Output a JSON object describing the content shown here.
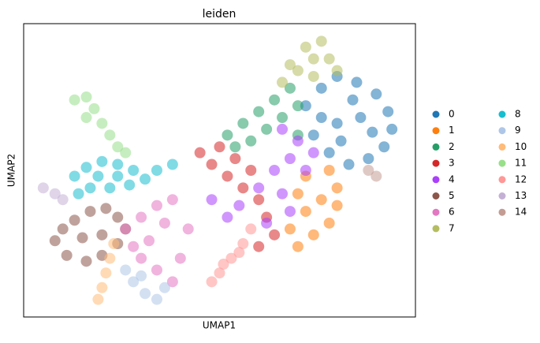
{
  "chart_data": {
    "type": "scatter",
    "title": "leiden",
    "x_label": "UMAP1",
    "y_label": "UMAP2",
    "xlim": [
      0,
      100
    ],
    "ylim": [
      0,
      100
    ],
    "series": [
      {
        "name": "0",
        "color": "#1f77b4",
        "x": [
          72,
          76,
          80,
          85,
          90,
          93,
          94,
          92,
          88,
          83,
          78,
          74,
          80,
          86,
          84,
          76,
          89,
          81
        ],
        "values": [
          72,
          78,
          82,
          80,
          76,
          70,
          64,
          58,
          54,
          52,
          56,
          62,
          66,
          68,
          74,
          68,
          63,
          60
        ]
      },
      {
        "name": "1",
        "color": "#ff7f0e",
        "x": [
          72,
          78,
          80,
          76,
          72,
          78,
          74,
          70,
          68,
          70,
          80
        ],
        "values": [
          48,
          50,
          44,
          40,
          36,
          32,
          28,
          24,
          30,
          42,
          38
        ]
      },
      {
        "name": "2",
        "color": "#279e68",
        "x": [
          52,
          56,
          60,
          64,
          68,
          62,
          66,
          70,
          58,
          54,
          70
        ],
        "values": [
          62,
          66,
          70,
          74,
          78,
          64,
          68,
          72,
          60,
          58,
          62
        ]
      },
      {
        "name": "3",
        "color": "#d62728",
        "x": [
          45,
          50,
          54,
          52,
          58,
          56,
          60,
          62,
          64,
          60,
          48
        ],
        "values": [
          56,
          58,
          54,
          48,
          50,
          44,
          40,
          34,
          28,
          24,
          52
        ]
      },
      {
        "name": "4",
        "color": "#aa40fc",
        "x": [
          66,
          70,
          68,
          72,
          64,
          66,
          68,
          62,
          74,
          60,
          55,
          48,
          52
        ],
        "values": [
          64,
          60,
          54,
          50,
          50,
          42,
          36,
          32,
          56,
          44,
          38,
          40,
          34
        ]
      },
      {
        "name": "5",
        "color": "#8c564b",
        "x": [
          8,
          10,
          13,
          17,
          21,
          24,
          26,
          24,
          20,
          16,
          11,
          15,
          20
        ],
        "values": [
          26,
          30,
          33,
          36,
          37,
          34,
          30,
          25,
          21,
          19,
          21,
          27,
          28
        ]
      },
      {
        "name": "6",
        "color": "#e377c2",
        "x": [
          26,
          30,
          34,
          38,
          36,
          32,
          30,
          34,
          38,
          40,
          28,
          42
        ],
        "values": [
          30,
          34,
          38,
          40,
          32,
          26,
          20,
          16,
          12,
          20,
          24,
          30
        ]
      },
      {
        "name": "7",
        "color": "#b5bd61",
        "x": [
          66,
          70,
          74,
          72,
          76,
          78,
          80,
          68,
          74
        ],
        "values": [
          80,
          84,
          88,
          92,
          94,
          88,
          84,
          86,
          82
        ]
      },
      {
        "name": "8",
        "color": "#17becf",
        "x": [
          13,
          16,
          20,
          24,
          28,
          31,
          27,
          22,
          17,
          14,
          24,
          19,
          34,
          38
        ],
        "values": [
          48,
          51,
          53,
          52,
          50,
          47,
          45,
          44,
          44,
          42,
          48,
          48,
          50,
          52
        ]
      },
      {
        "name": "9",
        "color": "#aec7e8",
        "x": [
          26,
          28,
          31,
          34,
          36,
          30
        ],
        "values": [
          16,
          12,
          8,
          6,
          10,
          14
        ]
      },
      {
        "name": "10",
        "color": "#ffbb78",
        "x": [
          19,
          20,
          21,
          22,
          23
        ],
        "values": [
          6,
          10,
          15,
          20,
          25
        ]
      },
      {
        "name": "11",
        "color": "#98df8a",
        "x": [
          13,
          16,
          18,
          20,
          22,
          24,
          26,
          16
        ],
        "values": [
          74,
          75,
          71,
          66,
          62,
          58,
          56,
          68
        ]
      },
      {
        "name": "12",
        "color": "#ff9896",
        "x": [
          48,
          50,
          53,
          56,
          58,
          51,
          55
        ],
        "values": [
          12,
          15,
          20,
          25,
          30,
          18,
          22
        ]
      },
      {
        "name": "13",
        "color": "#c5b0d5",
        "x": [
          5,
          8,
          10
        ],
        "values": [
          44,
          42,
          40
        ]
      },
      {
        "name": "14",
        "color": "#c49c94",
        "x": [
          88,
          90
        ],
        "values": [
          50,
          48
        ]
      }
    ]
  }
}
